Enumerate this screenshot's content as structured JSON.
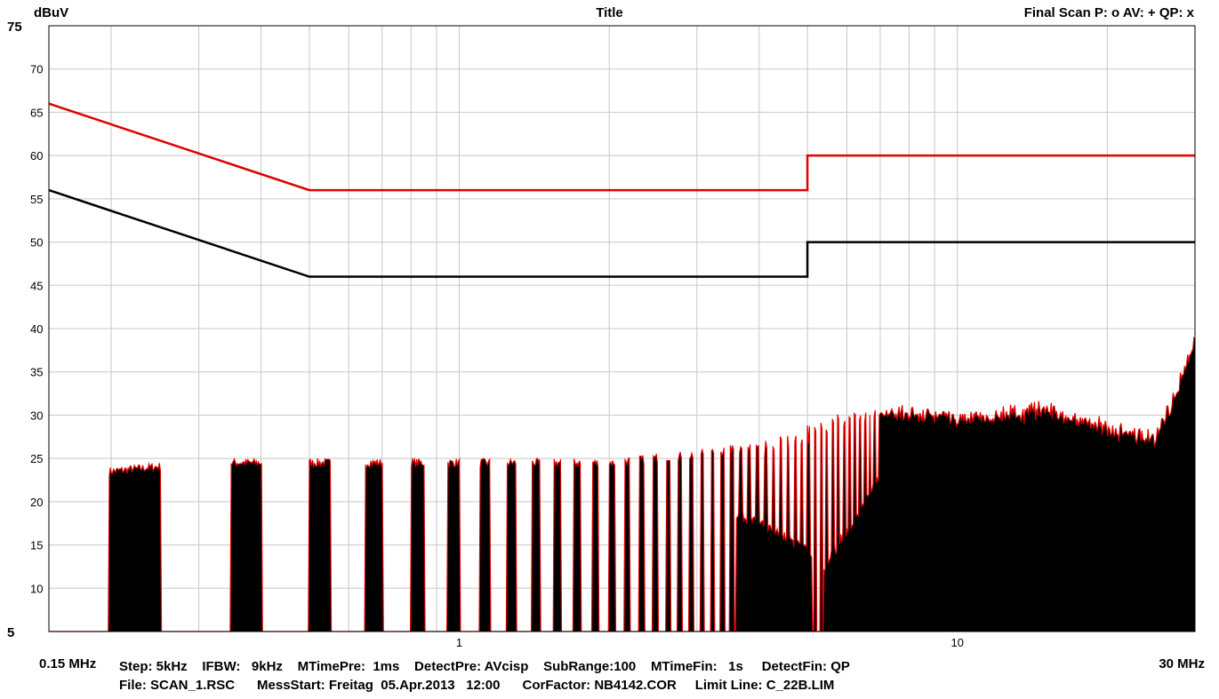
{
  "header": {
    "ylabel": "dBuV",
    "title": "Title",
    "legend": "Final Scan P: o  AV: +  QP: x"
  },
  "footer": {
    "x_start_label": "0.15 MHz",
    "x_end_label": "30 MHz",
    "line1": "Step: 5kHz    IFBW:   9kHz    MTimePre:  1ms    DetectPre: AVcisp    SubRange:100    MTimeFin:   1s     DetectFin: QP",
    "line2": "File: SCAN_1.RSC      MessStart: Freitag  05.Apr.2013   12:00      CorFactor: NB4142.COR     Limit Line: C_22B.LIM"
  },
  "colors": {
    "quasi_peak_limit": "#e00000",
    "average_limit": "#000000",
    "spectrum_fill": "#000000",
    "spectrum_envelope": "#e00000",
    "grid": "#c8c8c8"
  },
  "chart_data": {
    "type": "line",
    "x_scale": "log",
    "x_unit": "MHz",
    "xlim": [
      0.15,
      30
    ],
    "ylim": [
      5,
      75
    ],
    "ylabel": "dBuV",
    "grid": true,
    "y_ticks": [
      "75",
      "70",
      "65",
      "60",
      "55",
      "50",
      "45",
      "40",
      "35",
      "30",
      "25",
      "20",
      "15",
      "10",
      "5"
    ],
    "y_tick_values": [
      75,
      70,
      65,
      60,
      55,
      50,
      45,
      40,
      35,
      30,
      25,
      20,
      15,
      10,
      5
    ],
    "x_ticks": [
      "1",
      "10"
    ],
    "x_tick_values": [
      1,
      10
    ],
    "series": [
      {
        "x": [
          0.15,
          0.5,
          5,
          5,
          30
        ],
        "y": [
          66,
          56,
          56,
          60,
          60
        ]
      },
      {
        "x": [
          0.15,
          0.5,
          5,
          5,
          30
        ],
        "y": [
          56,
          46,
          46,
          50,
          50
        ]
      },
      {
        "x": [
          0.15,
          0.2,
          0.3,
          0.5,
          0.8,
          1,
          1.5,
          2,
          3,
          4,
          4.8,
          5.3,
          6,
          7,
          8,
          10,
          12,
          15,
          18,
          22,
          25,
          28,
          30
        ],
        "y": [
          25,
          24,
          25,
          25,
          25,
          25,
          25,
          25,
          26,
          27,
          28.5,
          30,
          31,
          31.5,
          31.5,
          31,
          31,
          32,
          30.5,
          29,
          28.5,
          35,
          40
        ]
      }
    ]
  }
}
